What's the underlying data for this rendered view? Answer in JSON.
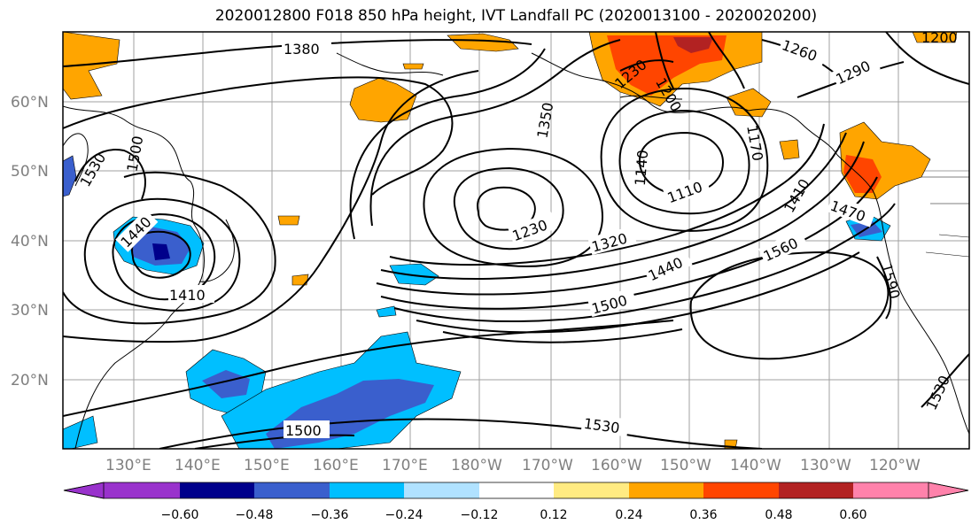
{
  "title": "2020012800 F018 850 hPa height, IVT Landfall PC (2020013100 - 2020020200)",
  "map": {
    "lon_labels": [
      "130°E",
      "140°E",
      "150°E",
      "160°E",
      "170°E",
      "180°W",
      "170°W",
      "160°W",
      "150°W",
      "140°W",
      "130°W",
      "120°W"
    ],
    "lat_labels": [
      "60°N",
      "50°N",
      "40°N",
      "30°N",
      "20°N"
    ],
    "contour_labels": [
      "1380",
      "1260",
      "1290",
      "1200",
      "1230",
      "1350",
      "1410",
      "1440",
      "1530",
      "1500",
      "1140",
      "1200",
      "1170",
      "1110",
      "1230",
      "1320",
      "1440",
      "1500",
      "1560",
      "1470",
      "1410",
      "1590",
      "1530",
      "1530",
      "1500",
      "1410",
      "1440",
      "1530",
      "1500",
      "1470",
      "1500"
    ],
    "shading": {
      "positive_color": "#ffa500",
      "strong_positive_color": "#ff4500",
      "negative_color": "#00bfff",
      "strong_negative_color": "#3a5fcd"
    }
  },
  "colorbar": {
    "colors": [
      "#9932cc",
      "#00008b",
      "#3a5fcd",
      "#00bfff",
      "#b0e2ff",
      "#ffffff",
      "#ffeb82",
      "#ffa500",
      "#ff4500",
      "#b22222",
      "#ff82ab"
    ],
    "labels": [
      "−0.60",
      "−0.48",
      "−0.36",
      "−0.24",
      "−0.12",
      "0.12",
      "0.24",
      "0.36",
      "0.48",
      "0.60"
    ]
  }
}
